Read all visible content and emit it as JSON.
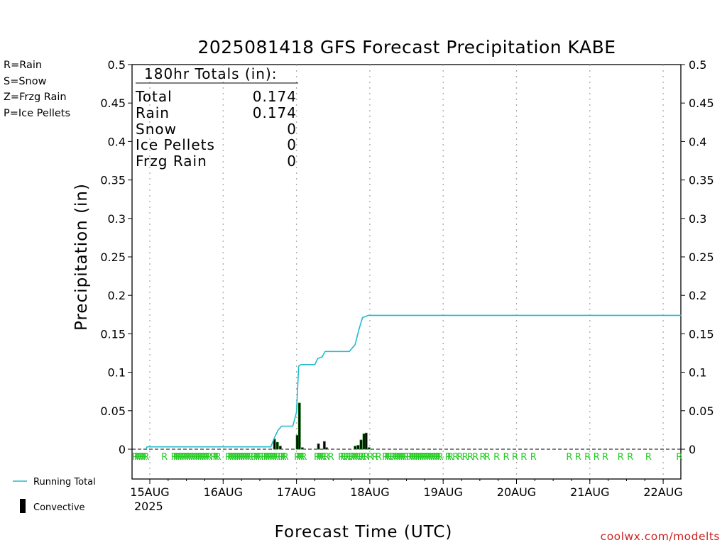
{
  "chart_data": {
    "type": "bar",
    "title": "2025081418 GFS Forecast Precipitation KABE",
    "xlabel": "Forecast Time (UTC)",
    "ylabel": "Precipitation (in)",
    "ylim": [
      0,
      0.5
    ],
    "yticks": [
      "0",
      "0.05",
      "0.1",
      "0.15",
      "0.2",
      "0.25",
      "0.3",
      "0.35",
      "0.4",
      "0.45",
      "0.5"
    ],
    "xticks": [
      {
        "label": "15AUG",
        "sub": "2025",
        "day": 0
      },
      {
        "label": "16AUG",
        "sub": "",
        "day": 1
      },
      {
        "label": "17AUG",
        "sub": "",
        "day": 2
      },
      {
        "label": "18AUG",
        "sub": "",
        "day": 3
      },
      {
        "label": "19AUG",
        "sub": "",
        "day": 4
      },
      {
        "label": "20AUG",
        "sub": "",
        "day": 5
      },
      {
        "label": "21AUG",
        "sub": "",
        "day": 6
      },
      {
        "label": "22AUG",
        "sub": "",
        "day": 7
      }
    ],
    "grid": "vertical dotted",
    "type_legend": [
      {
        "label": "R=Rain",
        "color": "#22cc22"
      },
      {
        "label": "S=Snow",
        "color": "#3344dd"
      },
      {
        "label": "Z=Frzg Rain",
        "color": "#ee8833"
      },
      {
        "label": "P=Ice Pellets",
        "color": "#dd2299"
      }
    ],
    "totals_box": {
      "header": "180hr Totals (in):",
      "rows": [
        {
          "label": "Total",
          "value": "0.174"
        },
        {
          "label": "Rain",
          "value": "0.174"
        },
        {
          "label": "Snow",
          "value": "0"
        },
        {
          "label": "Ice Pellets",
          "value": "0"
        },
        {
          "label": "Frzg Rain",
          "value": "0"
        }
      ]
    },
    "series": [
      {
        "name": "Running Total",
        "type": "line",
        "color": "#22bbcc",
        "points": [
          [
            -0.05,
            0
          ],
          [
            -0.04,
            0.003
          ],
          [
            1.65,
            0.003
          ],
          [
            1.7,
            0.015
          ],
          [
            1.75,
            0.025
          ],
          [
            1.8,
            0.03
          ],
          [
            1.95,
            0.03
          ],
          [
            2.0,
            0.048
          ],
          [
            2.03,
            0.108
          ],
          [
            2.06,
            0.11
          ],
          [
            2.25,
            0.11
          ],
          [
            2.29,
            0.118
          ],
          [
            2.35,
            0.12
          ],
          [
            2.39,
            0.127
          ],
          [
            2.72,
            0.127
          ],
          [
            2.8,
            0.136
          ],
          [
            2.85,
            0.155
          ],
          [
            2.9,
            0.171
          ],
          [
            2.98,
            0.174
          ],
          [
            7.25,
            0.174
          ]
        ]
      },
      {
        "name": "Convective",
        "type": "bar",
        "color": "#000000",
        "bars": [
          [
            1.7,
            0.013
          ],
          [
            1.74,
            0.009
          ],
          [
            1.78,
            0.004
          ],
          [
            2.01,
            0.018
          ],
          [
            2.04,
            0.06
          ],
          [
            2.08,
            0.002
          ],
          [
            2.3,
            0.007
          ],
          [
            2.38,
            0.01
          ],
          [
            2.41,
            0.002
          ],
          [
            2.8,
            0.004
          ],
          [
            2.84,
            0.005
          ],
          [
            2.88,
            0.012
          ],
          [
            2.92,
            0.02
          ],
          [
            2.95,
            0.021
          ],
          [
            2.99,
            0.002
          ]
        ],
        "fill_color": "#0a7a0a"
      }
    ],
    "precip_type_marks": {
      "symbol": "R",
      "color": "#22cc22",
      "times": [
        -0.2,
        -0.17,
        -0.14,
        -0.11,
        -0.08,
        -0.05,
        0.2,
        0.33,
        0.36,
        0.39,
        0.42,
        0.45,
        0.48,
        0.51,
        0.54,
        0.57,
        0.6,
        0.63,
        0.66,
        0.69,
        0.72,
        0.75,
        0.78,
        0.81,
        0.87,
        0.9,
        0.93,
        1.07,
        1.1,
        1.13,
        1.16,
        1.19,
        1.22,
        1.25,
        1.28,
        1.31,
        1.34,
        1.37,
        1.42,
        1.45,
        1.48,
        1.51,
        1.56,
        1.59,
        1.62,
        1.65,
        1.68,
        1.71,
        1.74,
        1.79,
        1.82,
        1.85,
        2.01,
        2.04,
        2.07,
        2.1,
        2.28,
        2.31,
        2.34,
        2.37,
        2.41,
        2.47,
        2.61,
        2.64,
        2.68,
        2.71,
        2.75,
        2.78,
        2.81,
        2.84,
        2.88,
        2.91,
        2.95,
        3.01,
        3.07,
        3.12,
        3.21,
        3.24,
        3.27,
        3.31,
        3.34,
        3.37,
        3.4,
        3.43,
        3.46,
        3.49,
        3.54,
        3.57,
        3.6,
        3.63,
        3.66,
        3.69,
        3.72,
        3.75,
        3.78,
        3.81,
        3.84,
        3.87,
        3.9,
        3.93,
        3.96,
        4.07,
        4.1,
        4.17,
        4.23,
        4.3,
        4.37,
        4.44,
        4.54,
        4.6,
        4.73,
        4.86,
        4.98,
        5.1,
        5.23,
        5.72,
        5.84,
        5.97,
        6.09,
        6.21,
        6.42,
        6.55,
        6.8,
        7.22
      ]
    },
    "bottom_legend": [
      {
        "label": "Running Total",
        "color": "#22bbcc",
        "symbol": "line"
      },
      {
        "label": "Convective",
        "color": "#000000",
        "symbol": "bar"
      }
    ]
  },
  "credit": "coolwx.com/modelts"
}
